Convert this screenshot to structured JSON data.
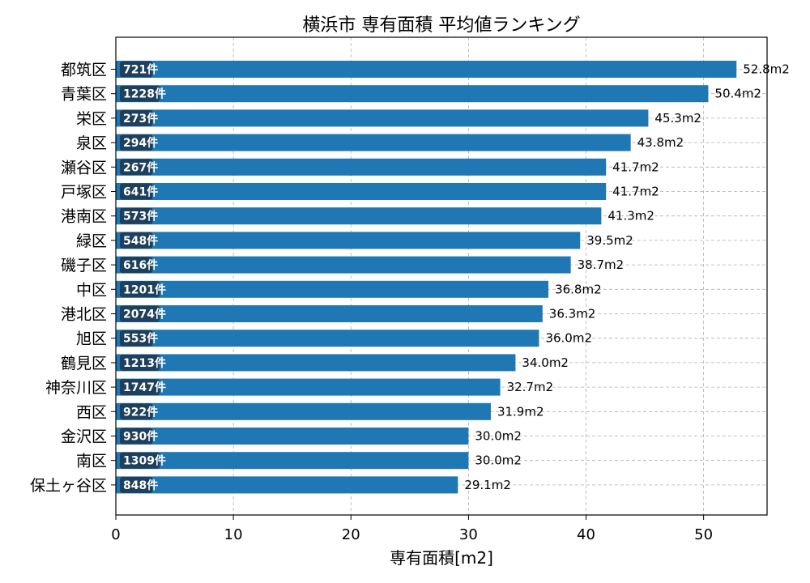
{
  "chart_data": {
    "type": "bar",
    "orientation": "horizontal",
    "title": "横浜市 専有面積 平均値ランキング",
    "xlabel": "専有面積[m2]",
    "ylabel": "",
    "xlim": [
      0,
      55.4
    ],
    "xticks": [
      0,
      10,
      20,
      30,
      40,
      50
    ],
    "grid": true,
    "bar_color": "#1f77b4",
    "badge_color": "#1e3a52",
    "value_suffix": "m2",
    "count_suffix": "件",
    "categories": [
      "都筑区",
      "青葉区",
      "栄区",
      "泉区",
      "瀬谷区",
      "戸塚区",
      "港南区",
      "緑区",
      "磯子区",
      "中区",
      "港北区",
      "旭区",
      "鶴見区",
      "神奈川区",
      "西区",
      "金沢区",
      "南区",
      "保土ヶ谷区"
    ],
    "values": [
      52.8,
      50.4,
      45.3,
      43.8,
      41.7,
      41.7,
      41.3,
      39.5,
      38.7,
      36.8,
      36.3,
      36.0,
      34.0,
      32.7,
      31.9,
      30.0,
      30.0,
      29.1
    ],
    "value_labels": [
      "52.8m2",
      "50.4m2",
      "45.3m2",
      "43.8m2",
      "41.7m2",
      "41.7m2",
      "41.3m2",
      "39.5m2",
      "38.7m2",
      "36.8m2",
      "36.3m2",
      "36.0m2",
      "34.0m2",
      "32.7m2",
      "31.9m2",
      "30.0m2",
      "30.0m2",
      "29.1m2"
    ],
    "counts": [
      "721件",
      "1228件",
      "273件",
      "294件",
      "267件",
      "641件",
      "573件",
      "548件",
      "616件",
      "1201件",
      "2074件",
      "553件",
      "1213件",
      "1747件",
      "922件",
      "930件",
      "1309件",
      "848件"
    ]
  }
}
